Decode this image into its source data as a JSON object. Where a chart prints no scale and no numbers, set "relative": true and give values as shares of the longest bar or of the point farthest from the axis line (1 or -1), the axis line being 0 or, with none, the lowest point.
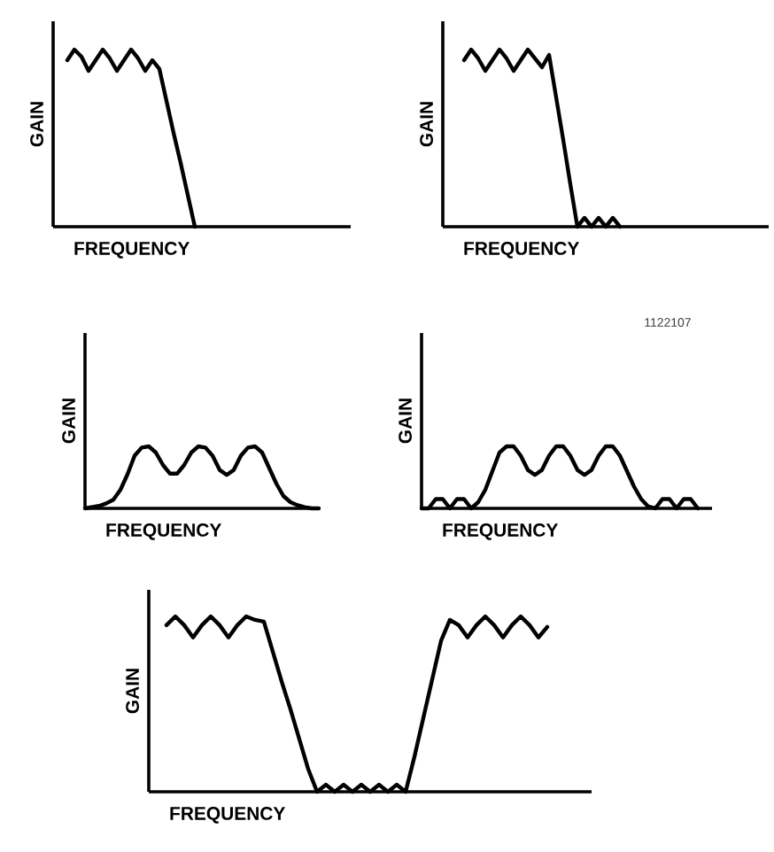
{
  "chart_data": [
    {
      "type": "line",
      "relative": true,
      "tick_labels": false,
      "xlabel": "FREQUENCY",
      "ylabel": "GAIN",
      "color": "#000000",
      "categories": [
        null,
        null,
        null,
        null,
        null,
        null,
        null,
        null,
        null,
        null,
        null,
        null,
        null,
        null,
        null,
        null,
        null,
        null,
        null,
        null,
        null,
        null,
        null,
        null,
        null,
        null,
        null,
        null,
        null,
        null,
        null,
        null,
        null,
        null,
        null,
        null,
        null,
        null,
        null,
        null,
        null,
        null,
        null
      ],
      "values": [
        null,
        null,
        0.94,
        1.0,
        0.96,
        0.88,
        0.94,
        1.0,
        0.95,
        0.88,
        0.94,
        1.0,
        0.95,
        0.88,
        0.94,
        0.89,
        0.71,
        0.53,
        0.36,
        0.18,
        0.0,
        null,
        null,
        null,
        null,
        null,
        null,
        null,
        null,
        null,
        null,
        null,
        null,
        null,
        null,
        null,
        null,
        null,
        null,
        null,
        null,
        null,
        null
      ]
    },
    {
      "type": "line",
      "relative": true,
      "tick_labels": false,
      "xlabel": "FREQUENCY",
      "ylabel": "GAIN",
      "color": "#000000",
      "categories": [
        null,
        null,
        null,
        null,
        null,
        null,
        null,
        null,
        null,
        null,
        null,
        null,
        null,
        null,
        null,
        null,
        null,
        null,
        null,
        null,
        null,
        null,
        null,
        null,
        null,
        null,
        null,
        null,
        null,
        null,
        null,
        null,
        null,
        null,
        null,
        null,
        null,
        null,
        null,
        null,
        null,
        null,
        null,
        null,
        null,
        null,
        null
      ],
      "values": [
        null,
        null,
        null,
        0.94,
        1.0,
        0.95,
        0.88,
        0.94,
        1.0,
        0.95,
        0.88,
        0.94,
        1.0,
        0.95,
        0.9,
        0.97,
        0.73,
        0.49,
        0.24,
        0.0,
        0.05,
        0.0,
        0.05,
        0.0,
        0.05,
        0.0,
        null,
        null,
        null,
        null,
        null,
        null,
        null,
        null,
        null,
        null,
        null,
        null,
        null,
        null,
        null,
        null,
        null,
        null,
        null,
        null,
        null
      ]
    },
    {
      "type": "line",
      "relative": true,
      "tick_labels": false,
      "xlabel": "FREQUENCY",
      "ylabel": "GAIN",
      "color": "#000000",
      "categories": [
        null,
        null,
        null,
        null,
        null,
        null,
        null,
        null,
        null,
        null,
        null,
        null,
        null,
        null,
        null,
        null,
        null,
        null,
        null,
        null,
        null,
        null,
        null,
        null,
        null,
        null,
        null,
        null,
        null,
        null,
        null,
        null,
        null,
        null
      ],
      "values": [
        0.0,
        0.02,
        0.04,
        0.08,
        0.14,
        0.3,
        0.55,
        0.85,
        0.98,
        1.0,
        0.9,
        0.7,
        0.56,
        0.56,
        0.7,
        0.9,
        1.0,
        0.98,
        0.85,
        0.62,
        0.54,
        0.62,
        0.85,
        0.98,
        1.0,
        0.9,
        0.65,
        0.4,
        0.2,
        0.1,
        0.05,
        0.02,
        0.0,
        0.0
      ]
    },
    {
      "type": "line",
      "relative": true,
      "tick_labels": false,
      "xlabel": "FREQUENCY",
      "ylabel": "GAIN",
      "color": "#000000",
      "annotations": [
        "1122107"
      ],
      "categories": [
        null,
        null,
        null,
        null,
        null,
        null,
        null,
        null,
        null,
        null,
        null,
        null,
        null,
        null,
        null,
        null,
        null,
        null,
        null,
        null,
        null,
        null,
        null,
        null,
        null,
        null,
        null,
        null,
        null,
        null,
        null,
        null,
        null,
        null,
        null,
        null,
        null,
        null,
        null,
        null,
        null,
        null
      ],
      "values": [
        0.0,
        0.0,
        0.15,
        0.15,
        0.0,
        0.15,
        0.15,
        0.0,
        0.1,
        0.3,
        0.6,
        0.9,
        1.0,
        1.0,
        0.85,
        0.62,
        0.54,
        0.62,
        0.85,
        1.0,
        1.0,
        0.85,
        0.62,
        0.54,
        0.62,
        0.85,
        1.0,
        1.0,
        0.85,
        0.6,
        0.35,
        0.15,
        0.03,
        0.0,
        0.15,
        0.15,
        0.0,
        0.15,
        0.15,
        0.0,
        null,
        null
      ]
    },
    {
      "type": "line",
      "relative": true,
      "tick_labels": false,
      "xlabel": "FREQUENCY",
      "ylabel": "GAIN",
      "color": "#000000",
      "categories": [
        null,
        null,
        null,
        null,
        null,
        null,
        null,
        null,
        null,
        null,
        null,
        null,
        null,
        null,
        null,
        null,
        null,
        null,
        null,
        null,
        null,
        null,
        null,
        null,
        null,
        null,
        null,
        null,
        null,
        null,
        null,
        null,
        null,
        null,
        null,
        null,
        null,
        null,
        null,
        null,
        null,
        null,
        null,
        null,
        null,
        null,
        null,
        null,
        null,
        null,
        null
      ],
      "values": [
        null,
        null,
        0.95,
        1.0,
        0.95,
        0.88,
        0.95,
        1.0,
        0.95,
        0.88,
        0.95,
        1.0,
        0.98,
        0.97,
        0.8,
        0.63,
        0.47,
        0.3,
        0.13,
        0.0,
        0.04,
        0.0,
        0.04,
        0.0,
        0.04,
        0.0,
        0.04,
        0.0,
        0.04,
        0.0,
        0.2,
        0.42,
        0.64,
        0.86,
        0.98,
        0.95,
        0.88,
        0.95,
        1.0,
        0.95,
        0.88,
        0.95,
        1.0,
        0.95,
        0.88,
        0.94,
        null,
        null,
        null,
        null,
        null
      ]
    }
  ]
}
